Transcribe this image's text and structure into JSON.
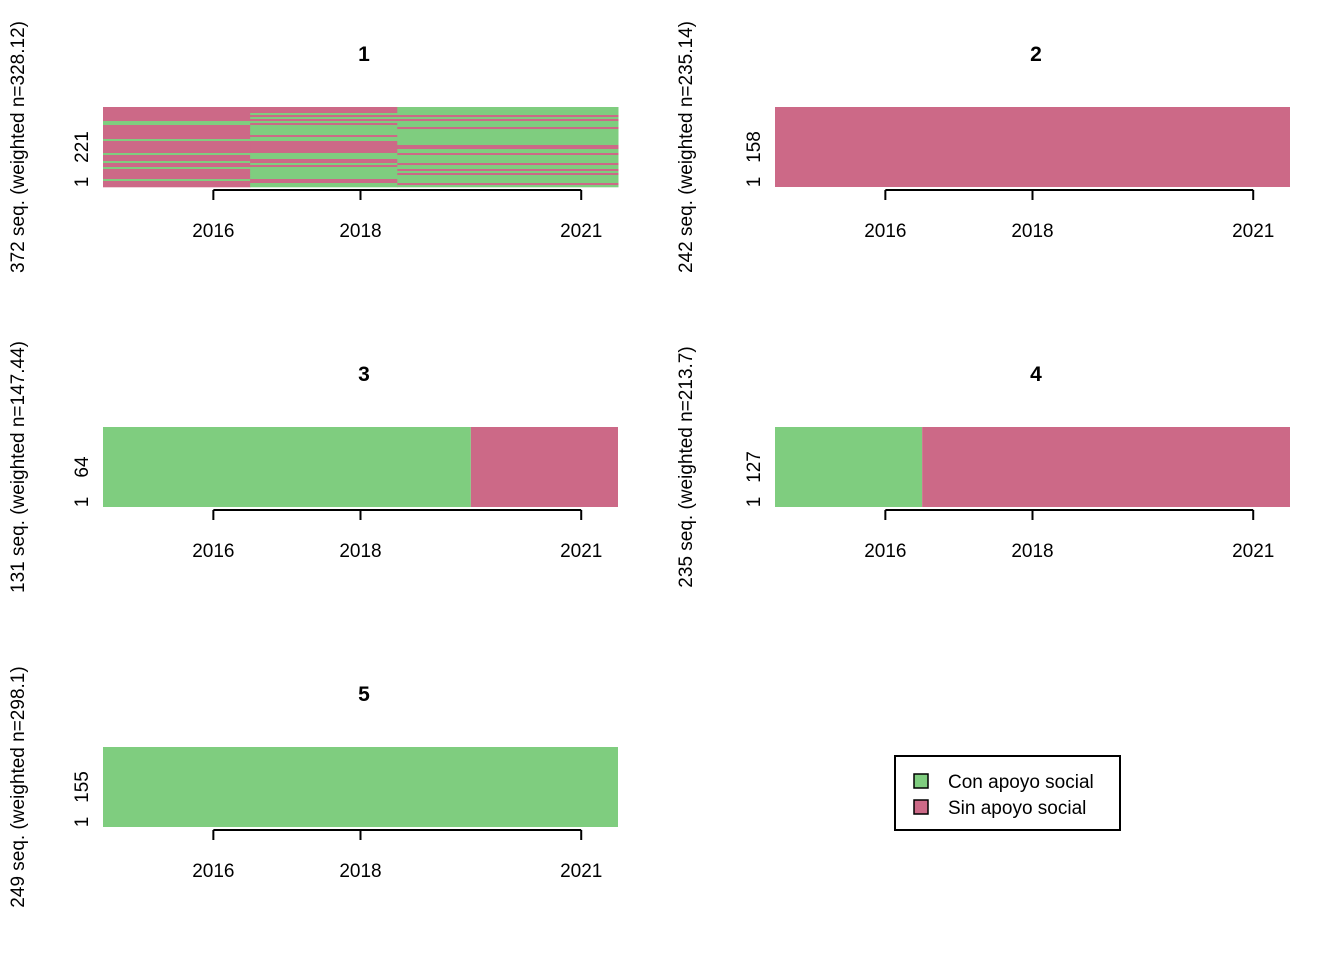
{
  "chart_data": {
    "type": "heatmap",
    "chart_kind": "sequence index plot",
    "states": [
      {
        "key": "con",
        "label": "Con apoyo social",
        "color": "#7FCD7F"
      },
      {
        "key": "sin",
        "label": "Sin apoyo social",
        "color": "#CC6987"
      }
    ],
    "periods": [
      "2015",
      "2016",
      "2017",
      "2018",
      "2019",
      "2020",
      "2021"
    ],
    "x_ticks": [
      "2016",
      "2018",
      "2021"
    ],
    "legend": {
      "placement": "bottom-right panel"
    },
    "panels": [
      {
        "title": "1",
        "ylabel": "372 seq. (weighted n=328.12)",
        "y_ticks": [
          "1",
          "221"
        ],
        "pattern": "mixed",
        "segments": [],
        "note_mix": "mixed sequences; share with support rises over periods",
        "con_share_by_block": [
          0.22,
          0.5,
          0.72
        ]
      },
      {
        "title": "2",
        "ylabel": "242 seq. (weighted n=235.14)",
        "y_ticks": [
          "1",
          "158"
        ],
        "pattern": "uniform",
        "segments": [
          {
            "state": "sin",
            "from": 0,
            "to": 7
          }
        ]
      },
      {
        "title": "3",
        "ylabel": "131 seq. (weighted n=147.44)",
        "y_ticks": [
          "1",
          "64"
        ],
        "pattern": "uniform",
        "segments": [
          {
            "state": "con",
            "from": 0,
            "to": 5
          },
          {
            "state": "sin",
            "from": 5,
            "to": 7
          }
        ]
      },
      {
        "title": "4",
        "ylabel": "235 seq. (weighted n=213.7)",
        "y_ticks": [
          "1",
          "127"
        ],
        "pattern": "uniform",
        "segments": [
          {
            "state": "con",
            "from": 0,
            "to": 2
          },
          {
            "state": "sin",
            "from": 2,
            "to": 7
          }
        ]
      },
      {
        "title": "5",
        "ylabel": "249 seq. (weighted n=298.1)",
        "y_ticks": [
          "1",
          "155"
        ],
        "pattern": "uniform",
        "segments": [
          {
            "state": "con",
            "from": 0,
            "to": 7
          }
        ]
      }
    ]
  }
}
